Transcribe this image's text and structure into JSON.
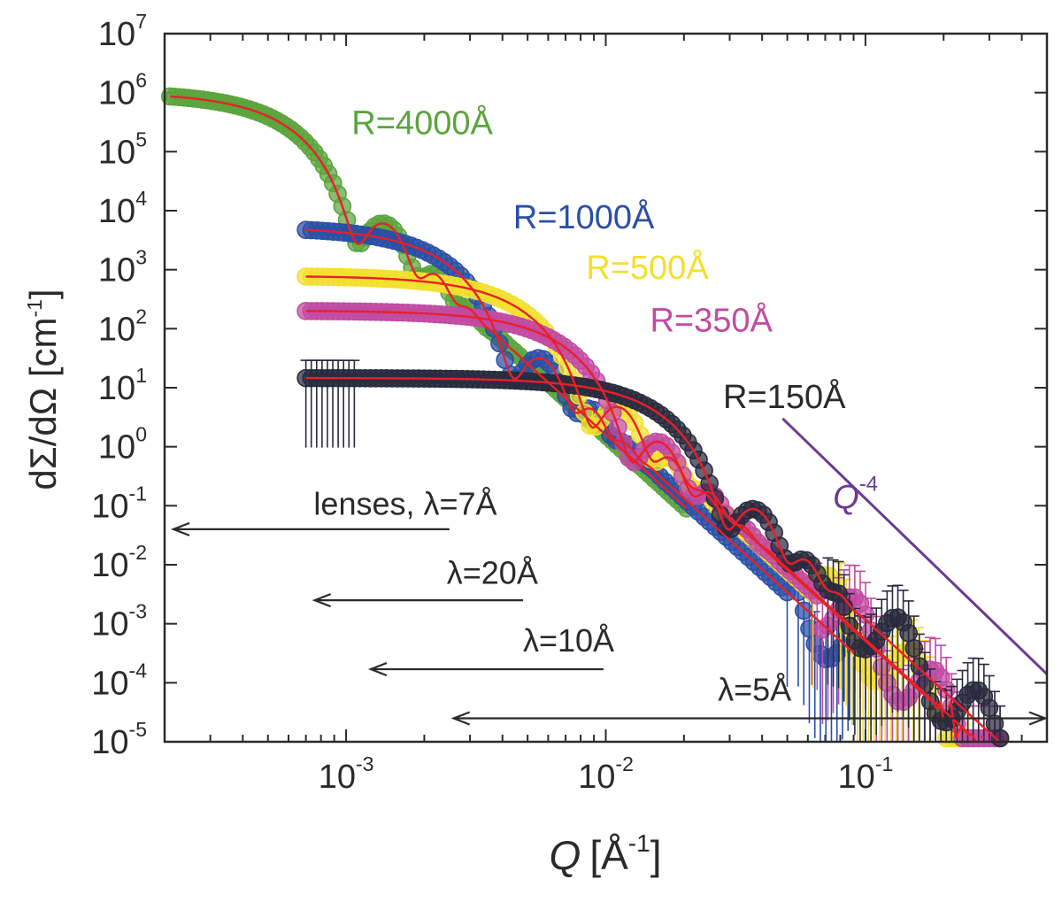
{
  "chart_data": {
    "type": "scatter",
    "x_scale": "log",
    "y_scale": "log",
    "xlim": [
      0.0002,
      0.5
    ],
    "ylim": [
      1e-05,
      10000000
    ],
    "xticks": [
      0.001,
      0.01,
      0.1
    ],
    "xtick_labels": [
      {
        "base": "10",
        "exp": "-3"
      },
      {
        "base": "10",
        "exp": "-2"
      },
      {
        "base": "10",
        "exp": "-1"
      }
    ],
    "yticks": [
      1e-05,
      0.0001,
      0.001,
      0.01,
      0.1,
      1,
      10,
      100,
      1000,
      10000,
      100000,
      1000000,
      10000000
    ],
    "ytick_labels": [
      {
        "base": "10",
        "exp": "-5"
      },
      {
        "base": "10",
        "exp": "-4"
      },
      {
        "base": "10",
        "exp": "-3"
      },
      {
        "base": "10",
        "exp": "-2"
      },
      {
        "base": "10",
        "exp": "-1"
      },
      {
        "base": "10",
        "exp": "0"
      },
      {
        "base": "10",
        "exp": "1"
      },
      {
        "base": "10",
        "exp": "2"
      },
      {
        "base": "10",
        "exp": "3"
      },
      {
        "base": "10",
        "exp": "4"
      },
      {
        "base": "10",
        "exp": "5"
      },
      {
        "base": "10",
        "exp": "6"
      },
      {
        "base": "10",
        "exp": "7"
      }
    ],
    "xlabel": {
      "main": "Q",
      "unit_open": "[Å",
      "unit_exp": "-1",
      "unit_close": "]"
    },
    "ylabel": {
      "main": "dΣ/dΩ [cm",
      "exp": "-1",
      "close": "]"
    },
    "fit_color": "#e8202a",
    "series": [
      {
        "name": "R=4000Å",
        "radius_A": 4000,
        "color": "#5aa43c",
        "label_color": "#5aa43c",
        "label_anchor": {
          "q": 0.00105,
          "i": 200000
        },
        "q_range": [
          0.00021,
          0.0205
        ],
        "i0": 900000,
        "points": 112,
        "error_bars": false
      },
      {
        "name": "R=1000Å",
        "radius_A": 1000,
        "color": "#2a4fa6",
        "label_color": "#2a4fa6",
        "label_anchor": {
          "q": 0.0044,
          "i": 5000
        },
        "q_range": [
          0.0007,
          0.09
        ],
        "i0": 4700,
        "points": 100,
        "error_bars": true
      },
      {
        "name": "R=500Å",
        "radius_A": 500,
        "color": "#f2e02c",
        "label_color": "#f2e02c",
        "label_anchor": {
          "q": 0.0084,
          "i": 700
        },
        "q_range": [
          0.0007,
          0.25
        ],
        "i0": 700,
        "points": 120,
        "error_bars": true
      },
      {
        "name": "R=350Å",
        "radius_A": 350,
        "color": "#c24aa2",
        "label_color": "#c24aa2",
        "label_anchor": {
          "q": 0.0148,
          "i": 90
        },
        "q_range": [
          0.0007,
          0.33
        ],
        "i0": 180,
        "points": 130,
        "error_bars": true
      },
      {
        "name": "R=150Å",
        "radius_A": 150,
        "color": "#2a2a3e",
        "label_color": "#2a2a2a",
        "label_anchor": {
          "q": 0.0283,
          "i": 4.5
        },
        "q_range": [
          0.0007,
          0.33
        ],
        "i0": 13,
        "points": 130,
        "error_bars": true
      }
    ],
    "reference_line": {
      "label": "Q",
      "label_exp": "-4",
      "color": "#6b3a92",
      "from": {
        "q": 0.048,
        "i": 3
      },
      "to": {
        "q": 0.5,
        "i": 0.00014
      },
      "label_anchor": {
        "q": 0.075,
        "i": 0.09
      }
    },
    "q_ranges": [
      {
        "label": "lenses, λ=7Å",
        "q_min": 0.0002,
        "q_max": 0.0025,
        "arrow_y": 0.04,
        "label_y": 0.07,
        "label_q": 0.00075,
        "both_heads": false
      },
      {
        "label": "λ=20Å",
        "q_min": 0.0007,
        "q_max": 0.0048,
        "arrow_y": 0.0025,
        "label_y": 0.0048,
        "label_q": 0.00244,
        "both_heads": false
      },
      {
        "label": "λ=10Å",
        "q_min": 0.00115,
        "q_max": 0.0098,
        "arrow_y": 0.00017,
        "label_y": 0.00034,
        "label_q": 0.0048,
        "both_heads": false
      },
      {
        "label": "λ=5Å",
        "q_min": 0.0024,
        "q_max": 0.5,
        "arrow_y": 2.5e-05,
        "label_y": 5e-05,
        "label_q": 0.027,
        "both_heads": true
      }
    ]
  }
}
